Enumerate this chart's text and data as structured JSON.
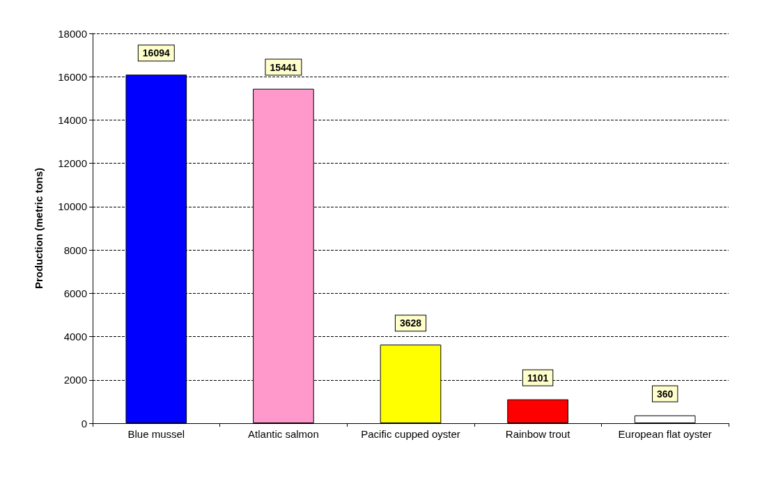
{
  "chart_data": {
    "type": "bar",
    "ylabel": "Production (metric tons)",
    "categories": [
      "Blue mussel",
      "Atlantic salmon",
      "Pacific cupped oyster",
      "Rainbow trout",
      "European flat oyster"
    ],
    "values": [
      16094,
      15441,
      3628,
      1101,
      360
    ],
    "colors": [
      "#0000ff",
      "#ff99cc",
      "#ffff00",
      "#ff0000",
      "#ffffff"
    ],
    "ylim": [
      0,
      18000
    ],
    "yticks": [
      0,
      2000,
      4000,
      6000,
      8000,
      10000,
      12000,
      14000,
      16000,
      18000
    ],
    "grid": "y",
    "data_labels": true
  }
}
